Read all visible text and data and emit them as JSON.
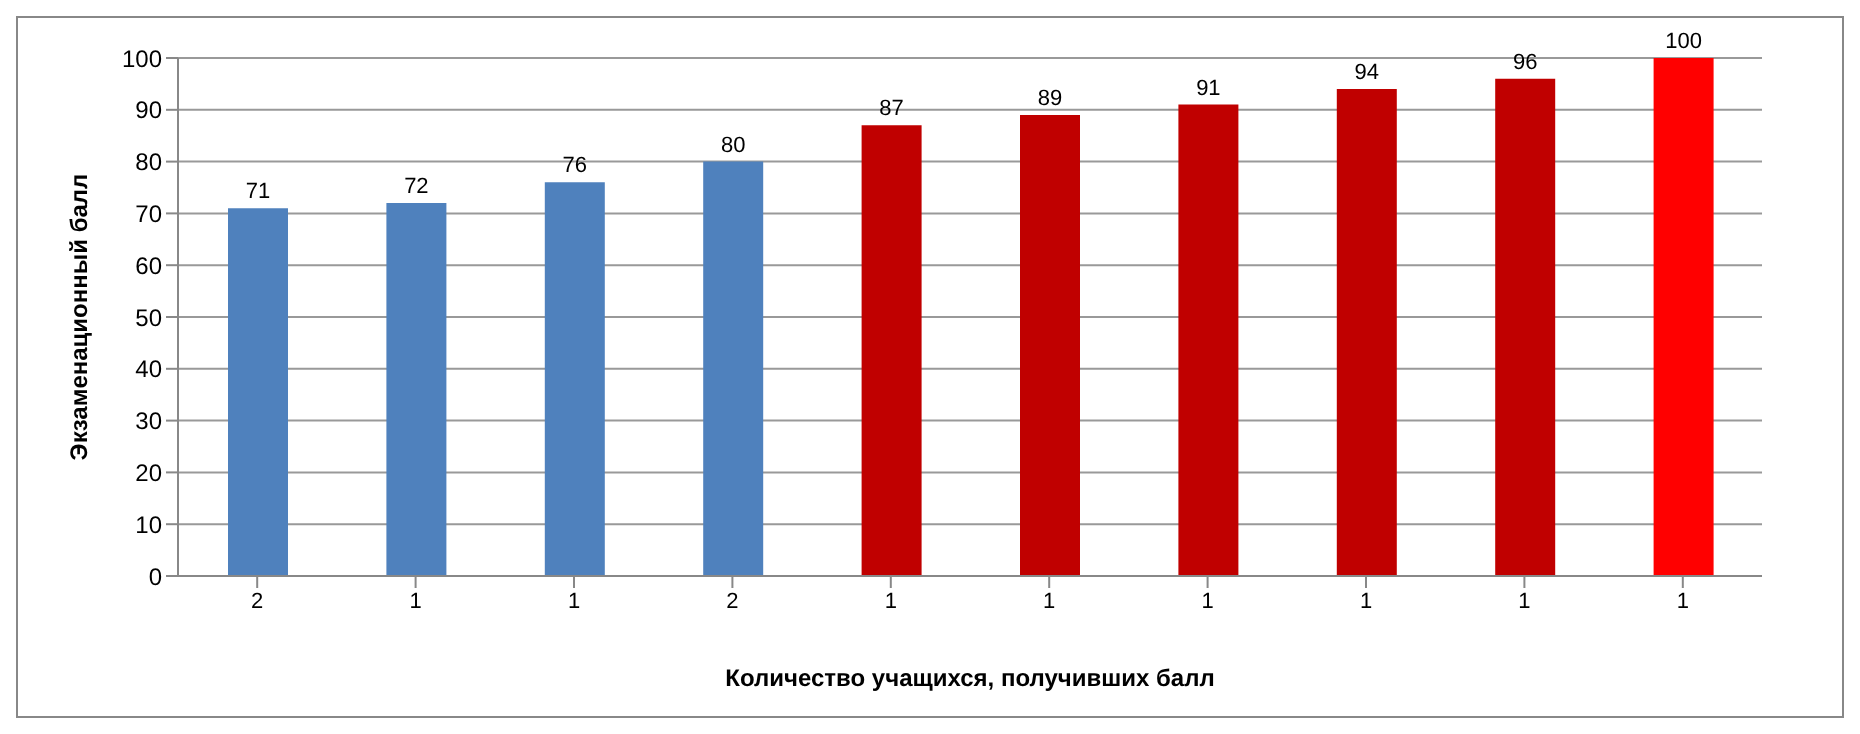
{
  "chart_data": {
    "type": "bar",
    "xlabel": "Количество учащихся, получивших балл",
    "ylabel": "Экзаменационный балл",
    "categories": [
      "2",
      "1",
      "1",
      "2",
      "1",
      "1",
      "1",
      "1",
      "1",
      "1"
    ],
    "values": [
      71,
      72,
      76,
      80,
      87,
      89,
      91,
      94,
      96,
      100
    ],
    "colors": [
      "#4f81bd",
      "#4f81bd",
      "#4f81bd",
      "#4f81bd",
      "#c00000",
      "#c00000",
      "#c00000",
      "#c00000",
      "#c00000",
      "#ff0000"
    ],
    "ylim": [
      0,
      100
    ],
    "yticks": [
      0,
      10,
      20,
      30,
      40,
      50,
      60,
      70,
      80,
      90,
      100
    ],
    "grid": "y",
    "data_labels": true,
    "legend": false
  }
}
